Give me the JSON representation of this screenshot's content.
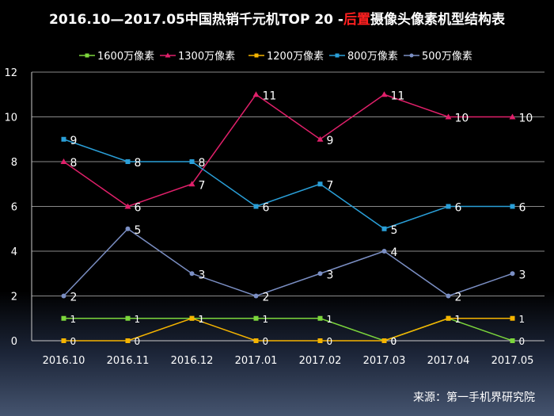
{
  "title": {
    "part1": "2016.10—2017.05中国热销千元机TOP 20 -",
    "highlight": "后置",
    "part2": "摄像头像素机型结构表"
  },
  "source": "来源：第一手机界研究院",
  "chart_data": {
    "type": "line",
    "categories": [
      "2016.10",
      "2016.11",
      "2016.12",
      "2017.01",
      "2017.02",
      "2017.03",
      "2017.04",
      "2017.05"
    ],
    "ylim": [
      0,
      12
    ],
    "yticks": [
      0,
      2,
      4,
      6,
      8,
      10,
      12
    ],
    "grid": true,
    "legend": "top",
    "series": [
      {
        "name": "1600万像素",
        "color": "#7cd63c",
        "marker": "square",
        "values": [
          1,
          1,
          1,
          1,
          1,
          0,
          1,
          0
        ]
      },
      {
        "name": "1300万像素",
        "color": "#e0206a",
        "marker": "triangle",
        "values": [
          8,
          6,
          7,
          11,
          9,
          11,
          10,
          10
        ]
      },
      {
        "name": "1200万像素",
        "color": "#f5b400",
        "marker": "square",
        "values": [
          0,
          0,
          1,
          0,
          0,
          0,
          1,
          1
        ]
      },
      {
        "name": "800万像素",
        "color": "#2a9fd8",
        "marker": "square",
        "values": [
          9,
          8,
          8,
          6,
          7,
          5,
          6,
          6
        ]
      },
      {
        "name": "500万像素",
        "color": "#7b8fc4",
        "marker": "circle",
        "values": [
          2,
          5,
          3,
          2,
          3,
          4,
          2,
          3
        ]
      }
    ]
  }
}
